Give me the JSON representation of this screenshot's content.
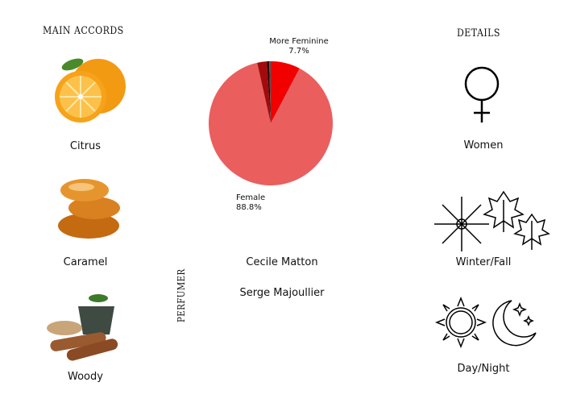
{
  "accords": {
    "title": "MAIN ACCORDS",
    "items": [
      {
        "label": "Citrus",
        "icon": "orange-icon"
      },
      {
        "label": "Caramel",
        "icon": "caramel-icon"
      },
      {
        "label": "Woody",
        "icon": "wood-icon"
      }
    ]
  },
  "chart_data": {
    "type": "pie",
    "slices": [
      {
        "name": "More Feminine",
        "value": 7.7,
        "color": "#f20000"
      },
      {
        "name": "Female",
        "value": 88.8,
        "color": "#ea5e5e"
      },
      {
        "name": "",
        "value": 2.5,
        "color": "#a10b0b"
      },
      {
        "name": "",
        "value": 0.6,
        "color": "#2a0000"
      },
      {
        "name": "",
        "value": 0.4,
        "color": "#555555"
      }
    ],
    "labels": [
      {
        "name": "More Feminine",
        "value_text": "7.7%"
      },
      {
        "name": "Female",
        "value_text": "88.8%"
      }
    ]
  },
  "perfumer": {
    "title": "PERFUMER",
    "names": [
      "Cecile Matton",
      "Serge Majoullier"
    ]
  },
  "details": {
    "title": "DETAILS",
    "items": [
      {
        "label": "Women",
        "icon": "female-symbol-icon"
      },
      {
        "label": "Winter/Fall",
        "icon": "snowflake-leaves-icon"
      },
      {
        "label": "Day/Night",
        "icon": "sun-moon-icon"
      }
    ]
  }
}
